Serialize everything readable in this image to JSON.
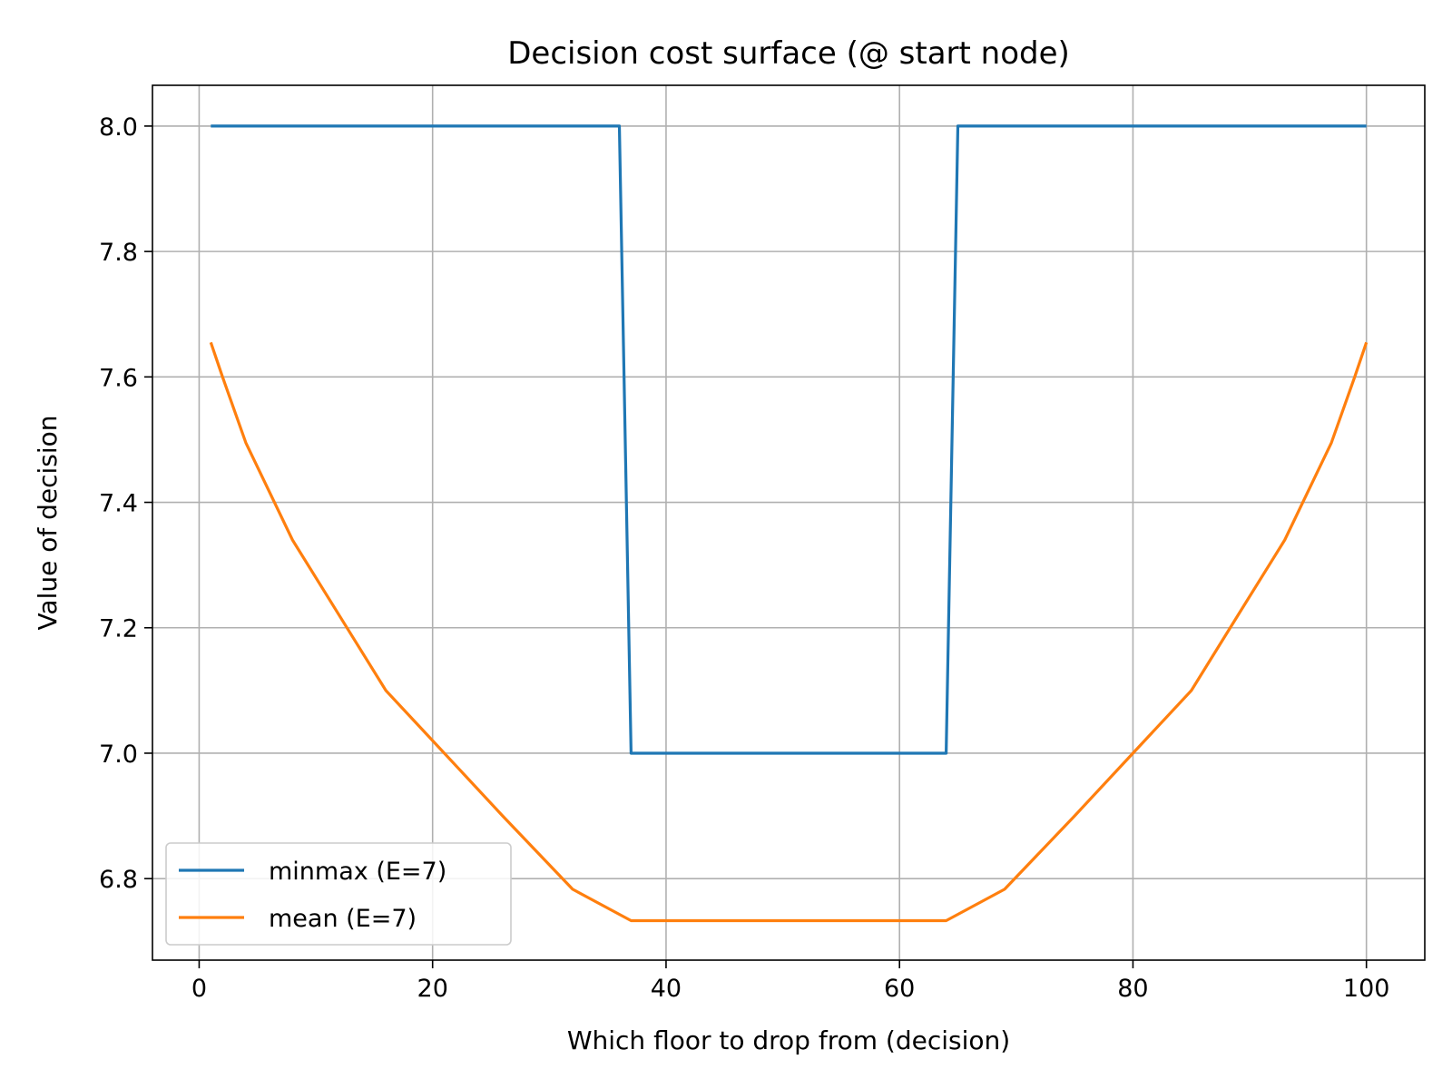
{
  "chart_data": {
    "type": "line",
    "title": "Decision cost surface (@ start node)",
    "xlabel": "Which floor to drop from (decision)",
    "ylabel": "Value of decision",
    "xlim": [
      -4,
      105
    ],
    "ylim": [
      6.67,
      8.065
    ],
    "xticks": [
      0,
      20,
      40,
      60,
      80,
      100
    ],
    "xtick_labels": [
      "0",
      "20",
      "40",
      "60",
      "80",
      "100"
    ],
    "yticks": [
      6.8,
      7.0,
      7.2,
      7.4,
      7.6,
      7.8,
      8.0
    ],
    "ytick_labels": [
      "6.8",
      "7.0",
      "7.2",
      "7.4",
      "7.6",
      "7.8",
      "8.0"
    ],
    "grid": true,
    "legend_position": "lower-left",
    "series": [
      {
        "name": "minmax (E=7)",
        "color": "#1f77b4",
        "x": [
          1,
          36,
          37,
          64,
          65,
          100
        ],
        "y": [
          8.0,
          8.0,
          7.0,
          7.0,
          8.0,
          8.0
        ]
      },
      {
        "name": "mean (E=7)",
        "color": "#ff7f0e",
        "x": [
          1,
          2,
          4,
          8,
          16,
          20,
          26,
          32,
          37,
          50,
          64,
          69,
          75,
          80,
          85,
          89,
          93,
          97,
          99,
          100
        ],
        "y": [
          7.655,
          7.6,
          7.495,
          7.34,
          7.1,
          7.02,
          6.9,
          6.783,
          6.733,
          6.733,
          6.733,
          6.783,
          6.9,
          7.0,
          7.1,
          7.22,
          7.34,
          7.495,
          7.6,
          7.655
        ]
      }
    ]
  }
}
